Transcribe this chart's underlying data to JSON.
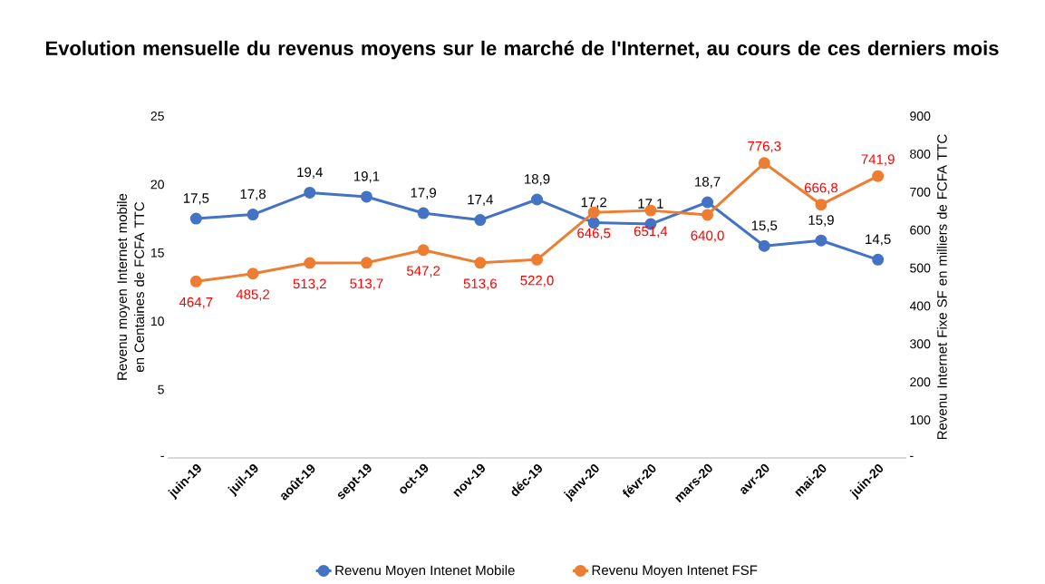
{
  "chart_data": {
    "type": "line",
    "title": "Evolution mensuelle du revenus moyens sur le marché de l'Internet, au cours de ces derniers mois",
    "ylabel": "Revenu moyen Internet mobile en Centaines de FCFA TTC",
    "y2label": "Revenu Internet Fixe SF en milliers de FCFA TTC",
    "categories": [
      "juin-19",
      "juil-19",
      "août-19",
      "sept-19",
      "oct-19",
      "nov-19",
      "déc-19",
      "janv-20",
      "févr-20",
      "mars-20",
      "avr-20",
      "mai-20",
      "juin-20"
    ],
    "series": [
      {
        "name": "Revenu Moyen Intenet Mobile",
        "color": "#4472c4",
        "values": [
          17.5,
          17.8,
          19.4,
          19.1,
          17.9,
          17.4,
          18.9,
          17.2,
          17.1,
          18.7,
          15.5,
          15.9,
          14.5
        ],
        "value_labels": [
          "17,5",
          "17,8",
          "19,4",
          "19,1",
          "17,9",
          "17,4",
          "18,9",
          "17,2",
          "17,1",
          "18,7",
          "15,5",
          "15,9",
          "14,5"
        ]
      },
      {
        "name": "Revenu Moyen Intenet FSF",
        "color": "#ed7d31",
        "axis": "y2",
        "values": [
          464.7,
          485.2,
          513.2,
          513.7,
          547.2,
          513.6,
          522.0,
          646.5,
          651.4,
          640.0,
          776.3,
          666.8,
          741.9
        ],
        "value_labels": [
          "464,7",
          "485,2",
          "513,2",
          "513,7",
          "547,2",
          "513,6",
          "522,0",
          "646,5",
          "651,4",
          "640,0",
          "776,3",
          "666,8",
          "741,9"
        ]
      }
    ],
    "ylim": [
      0,
      25
    ],
    "yticks": [
      {
        "value": 0,
        "label": "-"
      },
      5,
      10,
      15,
      20,
      25
    ],
    "y2lim": [
      0,
      900
    ],
    "y2ticks": [
      {
        "value": 0,
        "label": "-"
      },
      100,
      200,
      300,
      400,
      500,
      600,
      700,
      800,
      900
    ],
    "legend": "bottom",
    "marker": "circle",
    "line_style": "solid"
  }
}
